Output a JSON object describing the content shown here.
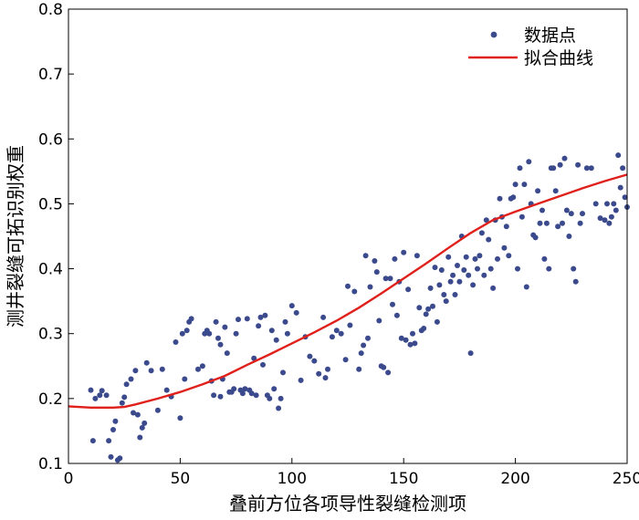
{
  "chart_data": {
    "type": "scatter",
    "xlabel": "叠前方位各项导性裂缝检测项",
    "ylabel": "测井裂缝可拓识别权重",
    "xlim": [
      0,
      250
    ],
    "ylim": [
      0.1,
      0.8
    ],
    "x_ticks": [
      0,
      50,
      100,
      150,
      200,
      250
    ],
    "y_ticks": [
      0.1,
      0.2,
      0.3,
      0.4,
      0.5,
      0.6,
      0.7,
      0.8
    ],
    "grid": false,
    "legend_position": "top-right",
    "colors": {
      "points": "#3b4a8c",
      "curve": "#e0201b"
    },
    "series": [
      {
        "name": "数据点",
        "kind": "scatter",
        "points": [
          [
            10,
            0.213
          ],
          [
            11,
            0.135
          ],
          [
            12,
            0.2
          ],
          [
            14,
            0.205
          ],
          [
            15,
            0.212
          ],
          [
            17,
            0.205
          ],
          [
            18,
            0.135
          ],
          [
            19,
            0.11
          ],
          [
            20,
            0.152
          ],
          [
            21,
            0.165
          ],
          [
            22,
            0.105
          ],
          [
            23,
            0.108
          ],
          [
            24,
            0.193
          ],
          [
            25,
            0.202
          ],
          [
            26,
            0.222
          ],
          [
            28,
            0.23
          ],
          [
            29,
            0.178
          ],
          [
            30,
            0.243
          ],
          [
            31,
            0.175
          ],
          [
            32,
            0.14
          ],
          [
            33,
            0.155
          ],
          [
            34,
            0.162
          ],
          [
            35,
            0.255
          ],
          [
            37,
            0.243
          ],
          [
            40,
            0.182
          ],
          [
            42,
            0.245
          ],
          [
            44,
            0.213
          ],
          [
            46,
            0.203
          ],
          [
            48,
            0.287
          ],
          [
            50,
            0.17
          ],
          [
            51,
            0.3
          ],
          [
            52,
            0.23
          ],
          [
            53,
            0.305
          ],
          [
            54,
            0.318
          ],
          [
            55,
            0.323
          ],
          [
            58,
            0.245
          ],
          [
            60,
            0.25
          ],
          [
            61,
            0.3
          ],
          [
            62,
            0.305
          ],
          [
            63,
            0.3
          ],
          [
            64,
            0.227
          ],
          [
            65,
            0.205
          ],
          [
            66,
            0.318
          ],
          [
            67,
            0.293
          ],
          [
            68,
            0.283
          ],
          [
            68,
            0.203
          ],
          [
            69,
            0.23
          ],
          [
            70,
            0.31
          ],
          [
            71,
            0.27
          ],
          [
            72,
            0.21
          ],
          [
            73,
            0.21
          ],
          [
            74,
            0.215
          ],
          [
            75,
            0.3
          ],
          [
            76,
            0.322
          ],
          [
            77,
            0.213
          ],
          [
            78,
            0.208
          ],
          [
            79,
            0.215
          ],
          [
            80,
            0.323
          ],
          [
            81,
            0.213
          ],
          [
            82,
            0.208
          ],
          [
            83,
            0.262
          ],
          [
            84,
            0.205
          ],
          [
            85,
            0.312
          ],
          [
            86,
            0.325
          ],
          [
            87,
            0.252
          ],
          [
            88,
            0.328
          ],
          [
            89,
            0.205
          ],
          [
            90,
            0.2
          ],
          [
            91,
            0.305
          ],
          [
            92,
            0.215
          ],
          [
            93,
            0.29
          ],
          [
            94,
            0.185
          ],
          [
            95,
            0.2
          ],
          [
            96,
            0.24
          ],
          [
            97,
            0.318
          ],
          [
            98,
            0.3
          ],
          [
            100,
            0.343
          ],
          [
            102,
            0.332
          ],
          [
            104,
            0.228
          ],
          [
            106,
            0.295
          ],
          [
            108,
            0.265
          ],
          [
            110,
            0.258
          ],
          [
            112,
            0.238
          ],
          [
            114,
            0.325
          ],
          [
            115,
            0.232
          ],
          [
            116,
            0.245
          ],
          [
            118,
            0.295
          ],
          [
            120,
            0.305
          ],
          [
            122,
            0.3
          ],
          [
            124,
            0.26
          ],
          [
            125,
            0.373
          ],
          [
            126,
            0.313
          ],
          [
            128,
            0.365
          ],
          [
            130,
            0.245
          ],
          [
            131,
            0.27
          ],
          [
            132,
            0.282
          ],
          [
            133,
            0.42
          ],
          [
            134,
            0.293
          ],
          [
            135,
            0.372
          ],
          [
            137,
            0.412
          ],
          [
            138,
            0.395
          ],
          [
            139,
            0.32
          ],
          [
            140,
            0.25
          ],
          [
            141,
            0.248
          ],
          [
            142,
            0.385
          ],
          [
            143,
            0.24
          ],
          [
            144,
            0.385
          ],
          [
            145,
            0.345
          ],
          [
            146,
            0.415
          ],
          [
            147,
            0.328
          ],
          [
            148,
            0.38
          ],
          [
            149,
            0.293
          ],
          [
            150,
            0.425
          ],
          [
            151,
            0.29
          ],
          [
            152,
            0.368
          ],
          [
            153,
            0.283
          ],
          [
            154,
            0.3
          ],
          [
            155,
            0.285
          ],
          [
            156,
            0.42
          ],
          [
            157,
            0.34
          ],
          [
            158,
            0.305
          ],
          [
            159,
            0.308
          ],
          [
            160,
            0.33
          ],
          [
            161,
            0.338
          ],
          [
            162,
            0.37
          ],
          [
            163,
            0.342
          ],
          [
            164,
            0.402
          ],
          [
            165,
            0.318
          ],
          [
            166,
            0.375
          ],
          [
            167,
            0.398
          ],
          [
            168,
            0.36
          ],
          [
            169,
            0.35
          ],
          [
            170,
            0.418
          ],
          [
            171,
            0.38
          ],
          [
            172,
            0.39
          ],
          [
            173,
            0.36
          ],
          [
            174,
            0.405
          ],
          [
            175,
            0.38
          ],
          [
            176,
            0.45
          ],
          [
            177,
            0.398
          ],
          [
            178,
            0.418
          ],
          [
            179,
            0.39
          ],
          [
            180,
            0.27
          ],
          [
            181,
            0.375
          ],
          [
            182,
            0.415
          ],
          [
            183,
            0.4
          ],
          [
            184,
            0.42
          ],
          [
            185,
            0.455
          ],
          [
            186,
            0.39
          ],
          [
            187,
            0.475
          ],
          [
            188,
            0.445
          ],
          [
            189,
            0.4
          ],
          [
            190,
            0.37
          ],
          [
            191,
            0.475
          ],
          [
            192,
            0.415
          ],
          [
            193,
            0.508
          ],
          [
            194,
            0.48
          ],
          [
            195,
            0.432
          ],
          [
            196,
            0.465
          ],
          [
            197,
            0.42
          ],
          [
            198,
            0.508
          ],
          [
            199,
            0.51
          ],
          [
            200,
            0.53
          ],
          [
            201,
            0.4
          ],
          [
            202,
            0.555
          ],
          [
            203,
            0.48
          ],
          [
            204,
            0.53
          ],
          [
            205,
            0.372
          ],
          [
            206,
            0.565
          ],
          [
            207,
            0.5
          ],
          [
            208,
            0.452
          ],
          [
            209,
            0.448
          ],
          [
            210,
            0.52
          ],
          [
            211,
            0.47
          ],
          [
            212,
            0.49
          ],
          [
            213,
            0.415
          ],
          [
            214,
            0.47
          ],
          [
            215,
            0.4
          ],
          [
            216,
            0.555
          ],
          [
            217,
            0.555
          ],
          [
            218,
            0.52
          ],
          [
            219,
            0.465
          ],
          [
            220,
            0.56
          ],
          [
            221,
            0.47
          ],
          [
            222,
            0.57
          ],
          [
            223,
            0.49
          ],
          [
            224,
            0.45
          ],
          [
            225,
            0.485
          ],
          [
            226,
            0.4
          ],
          [
            227,
            0.38
          ],
          [
            228,
            0.56
          ],
          [
            229,
            0.47
          ],
          [
            230,
            0.485
          ],
          [
            232,
            0.555
          ],
          [
            234,
            0.555
          ],
          [
            236,
            0.5
          ],
          [
            238,
            0.478
          ],
          [
            240,
            0.475
          ],
          [
            241,
            0.5
          ],
          [
            242,
            0.47
          ],
          [
            243,
            0.48
          ],
          [
            244,
            0.5
          ],
          [
            245,
            0.49
          ],
          [
            246,
            0.575
          ],
          [
            247,
            0.525
          ],
          [
            248,
            0.555
          ],
          [
            249,
            0.51
          ],
          [
            250,
            0.495
          ]
        ]
      },
      {
        "name": "拟合曲线",
        "kind": "line",
        "points": [
          [
            0,
            0.188
          ],
          [
            10,
            0.186
          ],
          [
            20,
            0.186
          ],
          [
            25,
            0.187
          ],
          [
            30,
            0.191
          ],
          [
            40,
            0.2
          ],
          [
            50,
            0.21
          ],
          [
            60,
            0.222
          ],
          [
            70,
            0.235
          ],
          [
            80,
            0.252
          ],
          [
            90,
            0.268
          ],
          [
            100,
            0.285
          ],
          [
            110,
            0.302
          ],
          [
            120,
            0.32
          ],
          [
            130,
            0.34
          ],
          [
            140,
            0.362
          ],
          [
            150,
            0.385
          ],
          [
            160,
            0.408
          ],
          [
            170,
            0.432
          ],
          [
            180,
            0.455
          ],
          [
            190,
            0.475
          ],
          [
            200,
            0.488
          ],
          [
            210,
            0.5
          ],
          [
            220,
            0.512
          ],
          [
            230,
            0.524
          ],
          [
            240,
            0.535
          ],
          [
            250,
            0.545
          ]
        ]
      }
    ]
  }
}
